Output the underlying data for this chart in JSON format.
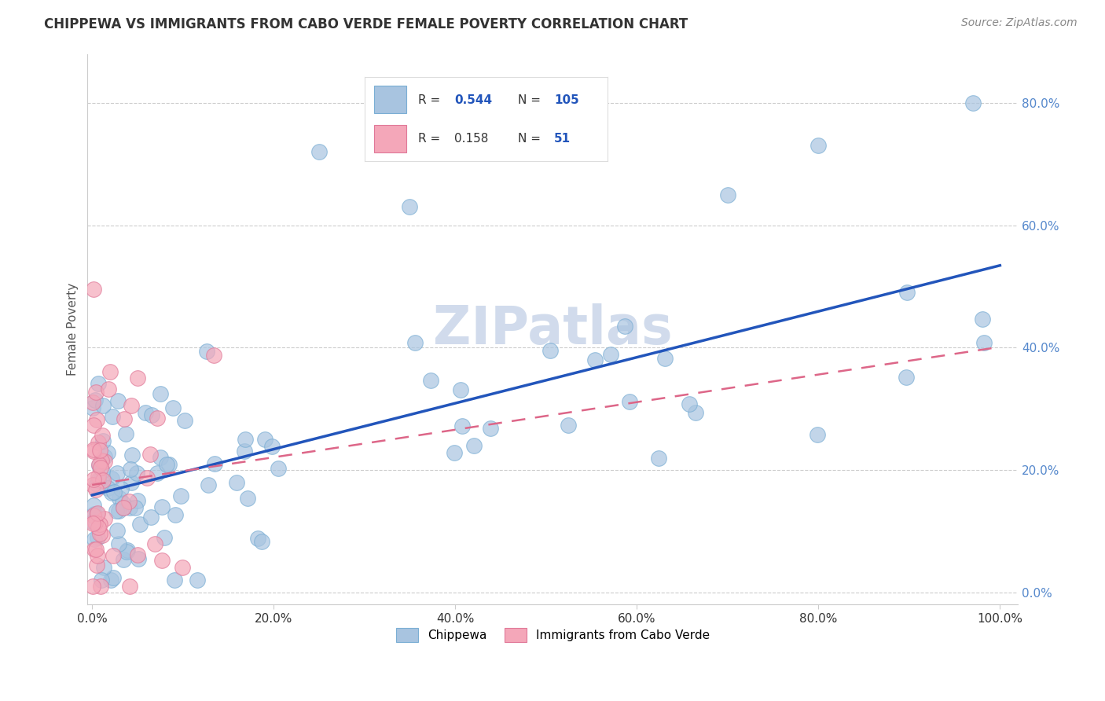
{
  "title": "CHIPPEWA VS IMMIGRANTS FROM CABO VERDE FEMALE POVERTY CORRELATION CHART",
  "source_text": "Source: ZipAtlas.com",
  "ylabel": "Female Poverty",
  "chippewa_color": "#a8c4e0",
  "chippewa_edge_color": "#7aaed4",
  "cabo_verde_color": "#f4a7b9",
  "cabo_verde_edge_color": "#e07898",
  "chippewa_line_color": "#2255bb",
  "cabo_verde_line_color": "#dd6688",
  "background_color": "#ffffff",
  "grid_color": "#cccccc",
  "title_color": "#333333",
  "source_color": "#888888",
  "ytick_color": "#5588cc",
  "xtick_color": "#333333",
  "watermark_color": "#ccd8ea",
  "legend_r1_color": "#2255bb",
  "legend_n1_color": "#2255bb",
  "legend_r2_color": "#333333",
  "legend_n2_color": "#2255bb",
  "chippewa_scatter_seed": 10,
  "cabo_verde_scatter_seed": 20,
  "chippewa_n": 105,
  "cabo_verde_n": 51
}
